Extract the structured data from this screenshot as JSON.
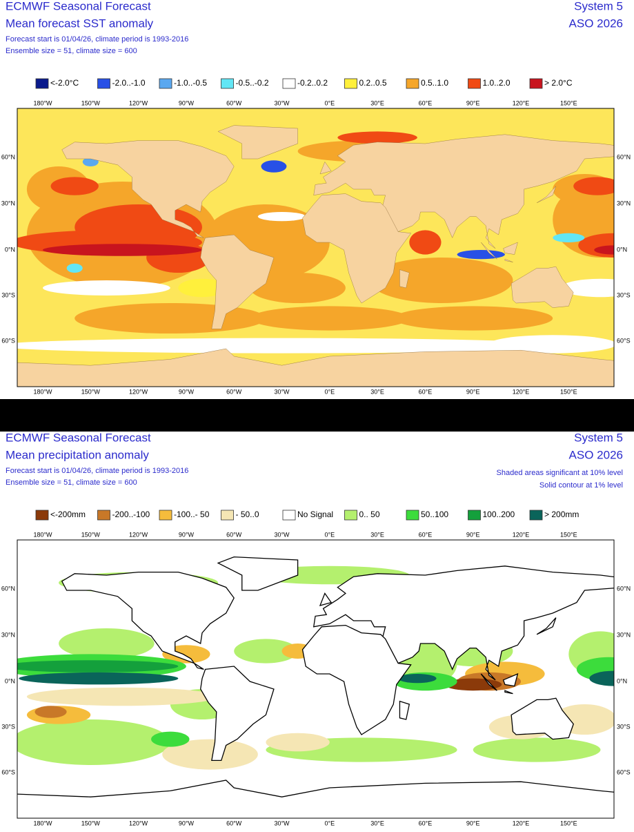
{
  "lon_labels": [
    "180°W",
    "150°W",
    "120°W",
    "90°W",
    "60°W",
    "30°W",
    "0°E",
    "30°E",
    "60°E",
    "90°E",
    "120°E",
    "150°E"
  ],
  "lat_labels": [
    "60°N",
    "30°N",
    "0°N",
    "30°S",
    "60°S"
  ],
  "panels": [
    {
      "header": {
        "left": [
          "ECMWF Seasonal Forecast",
          "Mean forecast SST anomaly",
          "Forecast start is 01/04/26, climate period is 1993-2016",
          "Ensemble size = 51, climate size = 600"
        ],
        "right": [
          "System 5",
          "ASO 2026"
        ]
      },
      "legend": [
        {
          "label": "<-2.0°C",
          "color": "#0a1a8c"
        },
        {
          "label": "-2.0..-1.0",
          "color": "#2850e6"
        },
        {
          "label": "-1.0..-0.5",
          "color": "#5aa8f0"
        },
        {
          "label": "-0.5..-0.2",
          "color": "#62e6f5"
        },
        {
          "label": "-0.2..0.2",
          "color": "#ffffff"
        },
        {
          "label": "0.2..0.5",
          "color": "#fff03c"
        },
        {
          "label": "0.5..1.0",
          "color": "#f5a62a"
        },
        {
          "label": "1.0..2.0",
          "color": "#f04a14"
        },
        {
          "label": "> 2.0°C",
          "color": "#c8141e"
        }
      ]
    },
    {
      "header": {
        "left": [
          "ECMWF Seasonal Forecast",
          "Mean precipitation anomaly",
          "Forecast start is 01/04/26, climate period is 1993-2016",
          "Ensemble size = 51, climate size = 600"
        ],
        "right": [
          "System 5",
          "ASO 2026",
          "Shaded areas significant at 10% level",
          "Solid contour at 1% level"
        ]
      },
      "legend": [
        {
          "label": "<-200mm",
          "color": "#8b3a0a"
        },
        {
          "label": "-200..-100",
          "color": "#c87828"
        },
        {
          "label": "-100..- 50",
          "color": "#f5bc3c"
        },
        {
          "label": "- 50..0",
          "color": "#f5e6b4"
        },
        {
          "label": "No Signal",
          "color": "#ffffff"
        },
        {
          "label": "0.. 50",
          "color": "#b4f06e"
        },
        {
          "label": "50..100",
          "color": "#3cdc3c"
        },
        {
          "label": "100..200",
          "color": "#14a03c"
        },
        {
          "label": "> 200mm",
          "color": "#0a645a"
        }
      ]
    }
  ]
}
